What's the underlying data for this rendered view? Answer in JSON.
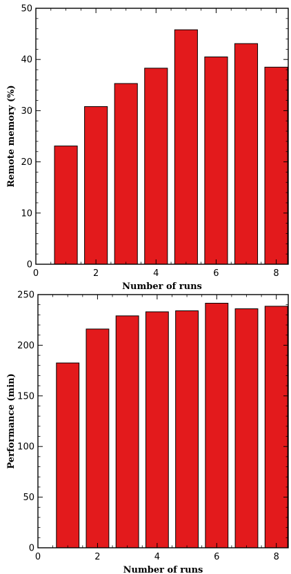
{
  "chart_data": [
    {
      "type": "bar",
      "x": [
        1,
        2,
        3,
        4,
        5,
        6,
        7,
        8
      ],
      "values": [
        23.1,
        30.8,
        35.3,
        38.3,
        45.8,
        40.5,
        43.1,
        38.5
      ],
      "xlabel": "Number of runs",
      "ylabel": "Remote memory (%)",
      "xlim": [
        0,
        8.4
      ],
      "ylim": [
        0,
        50
      ],
      "xticks": [
        0,
        2,
        4,
        6,
        8
      ],
      "yticks": [
        0,
        10,
        20,
        30,
        40,
        50
      ],
      "bar_color": "#e31a1c",
      "grid": false
    },
    {
      "type": "bar",
      "x": [
        1,
        2,
        3,
        4,
        5,
        6,
        7,
        8
      ],
      "values": [
        182.5,
        216,
        229,
        233,
        234,
        241.5,
        236,
        238.5
      ],
      "xlabel": "Number of runs",
      "ylabel": "Performance (min)",
      "xlim": [
        0,
        8.4
      ],
      "ylim": [
        0,
        250
      ],
      "xticks": [
        0,
        2,
        4,
        6,
        8
      ],
      "yticks": [
        0,
        50,
        100,
        150,
        200,
        250
      ],
      "bar_color": "#e31a1c",
      "grid": false
    }
  ]
}
